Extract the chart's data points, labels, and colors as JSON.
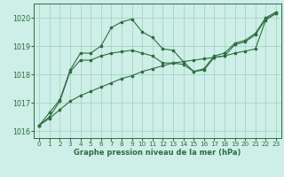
{
  "title": "Graphe pression niveau de la mer (hPa)",
  "xlim": [
    -0.5,
    23.5
  ],
  "ylim": [
    1015.75,
    1020.5
  ],
  "yticks": [
    1016,
    1017,
    1018,
    1019,
    1020
  ],
  "xticks": [
    0,
    1,
    2,
    3,
    4,
    5,
    6,
    7,
    8,
    9,
    10,
    11,
    12,
    13,
    14,
    15,
    16,
    17,
    18,
    19,
    20,
    21,
    22,
    23
  ],
  "bg_color": "#ceeee8",
  "line_color": "#2d6e3e",
  "grid_color": "#a0cfc0",
  "line1_x": [
    0,
    1,
    2,
    3,
    4,
    5,
    6,
    7,
    8,
    9,
    10,
    11,
    12,
    13,
    14,
    15,
    16,
    17,
    18,
    19,
    20,
    21,
    22,
    23
  ],
  "line1_y": [
    1016.2,
    1016.65,
    1017.1,
    1018.15,
    1018.75,
    1018.75,
    1019.0,
    1019.65,
    1019.85,
    1019.95,
    1019.5,
    1019.3,
    1018.9,
    1018.85,
    1018.45,
    1018.1,
    1018.2,
    1018.65,
    1018.75,
    1019.1,
    1019.2,
    1019.45,
    1020.0,
    1020.2
  ],
  "line2_x": [
    0,
    1,
    2,
    3,
    4,
    5,
    6,
    7,
    8,
    9,
    10,
    11,
    12,
    13,
    14,
    15,
    16,
    17,
    18,
    19,
    20,
    21,
    22,
    23
  ],
  "line2_y": [
    1016.2,
    1016.5,
    1017.05,
    1018.1,
    1018.5,
    1018.5,
    1018.65,
    1018.75,
    1018.8,
    1018.85,
    1018.75,
    1018.65,
    1018.4,
    1018.4,
    1018.35,
    1018.1,
    1018.15,
    1018.6,
    1018.65,
    1019.05,
    1019.15,
    1019.4,
    1019.95,
    1020.15
  ],
  "line3_x": [
    0,
    1,
    2,
    3,
    4,
    5,
    6,
    7,
    8,
    9,
    10,
    11,
    12,
    13,
    14,
    15,
    16,
    17,
    18,
    19,
    20,
    21,
    22,
    23
  ],
  "line3_y": [
    1016.2,
    1016.45,
    1016.75,
    1017.05,
    1017.25,
    1017.4,
    1017.55,
    1017.7,
    1017.85,
    1017.95,
    1018.1,
    1018.2,
    1018.3,
    1018.4,
    1018.45,
    1018.5,
    1018.55,
    1018.6,
    1018.65,
    1018.75,
    1018.82,
    1018.9,
    1019.92,
    1020.15
  ]
}
